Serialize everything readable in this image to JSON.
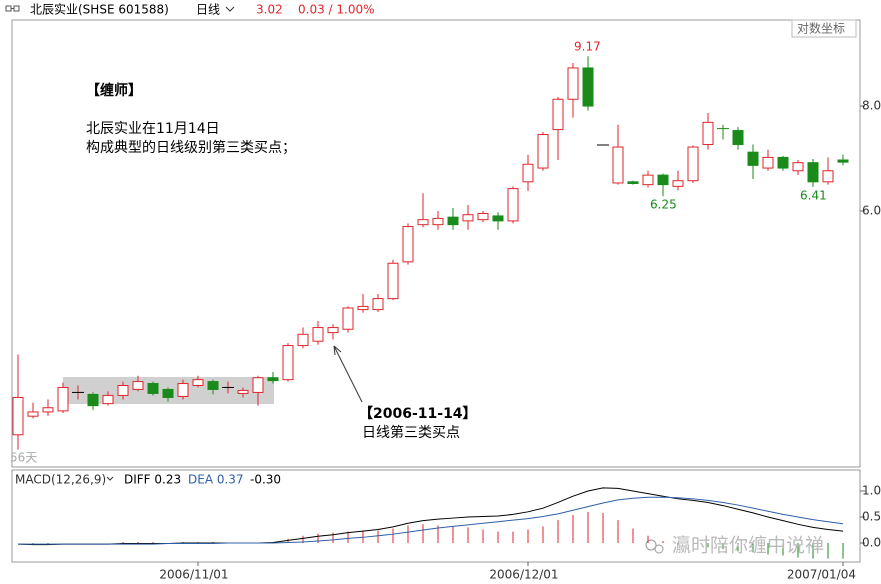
{
  "header": {
    "title": "北辰实业(SHSE 601588)",
    "period": "日线",
    "price": "3.02",
    "change": "0.03 / 1.00%"
  },
  "chart_data": [
    {
      "type": "candlestick",
      "log_scale": true,
      "scale_label": "对数坐标",
      "days_label": "56天",
      "up_color": "#e0262b",
      "down_color": "#1a8a1a",
      "categories": [
        null,
        null,
        null,
        null,
        null,
        null,
        null,
        null,
        null,
        null,
        null,
        null,
        "2006/11/01",
        null,
        null,
        null,
        null,
        null,
        null,
        null,
        null,
        null,
        null,
        null,
        null,
        null,
        null,
        null,
        null,
        null,
        null,
        null,
        null,
        null,
        "2006/12/01",
        null,
        null,
        null,
        null,
        null,
        null,
        null,
        null,
        null,
        null,
        null,
        null,
        null,
        null,
        null,
        null,
        null,
        null,
        null,
        null,
        "2007/01/04"
      ],
      "open": [
        3.25,
        3.42,
        3.46,
        3.47,
        3.65,
        3.63,
        3.54,
        3.62,
        3.68,
        3.74,
        3.68,
        3.61,
        3.72,
        3.76,
        3.7,
        3.64,
        3.65,
        3.8,
        3.78,
        4.15,
        4.2,
        4.3,
        4.34,
        4.58,
        4.58,
        4.72,
        5.22,
        5.78,
        5.78,
        5.9,
        5.84,
        5.86,
        5.92,
        5.84,
        6.5,
        6.75,
        7.5,
        8.15,
        8.88,
        7.19,
        6.48,
        6.5,
        6.45,
        6.62,
        6.42,
        6.52,
        7.2,
        7.52,
        7.48,
        7.05,
        6.75,
        6.95,
        6.7,
        6.85,
        6.5,
        6.9
      ],
      "high": [
        4.05,
        3.55,
        3.58,
        3.75,
        3.72,
        3.65,
        3.66,
        3.76,
        3.82,
        3.76,
        3.7,
        3.78,
        3.82,
        3.78,
        3.76,
        3.7,
        3.82,
        3.86,
        4.18,
        4.36,
        4.44,
        4.4,
        4.62,
        4.78,
        4.78,
        5.25,
        5.8,
        6.3,
        6.0,
        6.05,
        6.1,
        6.0,
        5.98,
        6.42,
        7.0,
        7.45,
        8.2,
        9.0,
        9.17,
        7.19,
        7.6,
        6.52,
        6.7,
        6.65,
        6.7,
        7.18,
        7.85,
        7.6,
        7.55,
        7.2,
        7.1,
        6.98,
        6.9,
        6.92,
        6.95,
        7.0
      ],
      "low": [
        3.12,
        3.4,
        3.42,
        3.45,
        3.58,
        3.48,
        3.52,
        3.58,
        3.66,
        3.62,
        3.56,
        3.58,
        3.7,
        3.63,
        3.64,
        3.6,
        3.52,
        3.74,
        3.76,
        4.12,
        4.16,
        4.22,
        4.3,
        4.54,
        4.55,
        4.7,
        5.18,
        5.74,
        5.7,
        5.7,
        5.7,
        5.82,
        5.7,
        5.8,
        6.34,
        6.7,
        6.9,
        7.75,
        7.9,
        7.19,
        6.45,
        6.45,
        6.4,
        6.25,
        6.35,
        6.48,
        7.1,
        7.3,
        7.1,
        6.55,
        6.7,
        6.7,
        6.62,
        6.41,
        6.45,
        6.8
      ],
      "close": [
        3.6,
        3.46,
        3.5,
        3.7,
        3.66,
        3.52,
        3.62,
        3.72,
        3.76,
        3.64,
        3.6,
        3.74,
        3.78,
        3.68,
        3.7,
        3.67,
        3.8,
        3.77,
        4.15,
        4.28,
        4.36,
        4.36,
        4.6,
        4.62,
        4.72,
        5.2,
        5.75,
        5.86,
        5.88,
        5.78,
        5.94,
        5.96,
        5.84,
        6.38,
        6.82,
        7.4,
        8.15,
        8.88,
        8.0,
        7.19,
        7.15,
        6.47,
        6.62,
        6.45,
        6.52,
        7.15,
        7.65,
        7.5,
        7.2,
        6.8,
        6.95,
        6.75,
        6.85,
        6.5,
        6.7,
        6.86
      ],
      "ylim": [
        3.0,
        10.0
      ],
      "yticks": [
        {
          "value": 6,
          "label": "6.0"
        },
        {
          "value": 8,
          "label": "8.0"
        }
      ],
      "price_labels": [
        "9.17",
        "6.25",
        "6.41"
      ],
      "annotations": [
        "【缠师】",
        "北辰实业在11月14日",
        "构成典型的日线级别第三类买点；",
        "【2006-11-14】",
        "日线第三类买点"
      ],
      "watermark": "瀛时陪你缠中说禅"
    },
    {
      "type": "macd",
      "title": "MACD(12,26,9)",
      "series": [
        {
          "name": "DIFF 0.23",
          "color": "#000000",
          "values": [
            -0.02,
            -0.03,
            -0.03,
            -0.02,
            -0.02,
            -0.02,
            -0.02,
            -0.01,
            -0.01,
            -0.01,
            -0.01,
            0,
            0,
            0,
            0,
            0,
            0,
            0.01,
            0.05,
            0.09,
            0.13,
            0.16,
            0.2,
            0.23,
            0.26,
            0.31,
            0.38,
            0.43,
            0.46,
            0.48,
            0.5,
            0.51,
            0.52,
            0.55,
            0.6,
            0.67,
            0.78,
            0.9,
            1.0,
            1.06,
            1.05,
            1.0,
            0.95,
            0.9,
            0.85,
            0.82,
            0.78,
            0.72,
            0.65,
            0.58,
            0.5,
            0.43,
            0.36,
            0.3,
            0.26,
            0.23
          ]
        },
        {
          "name": "DEA 0.37",
          "color": "#2d5fa8",
          "values": [
            -0.02,
            -0.02,
            -0.02,
            -0.02,
            -0.02,
            -0.02,
            -0.02,
            -0.02,
            -0.02,
            -0.02,
            -0.01,
            -0.01,
            -0.01,
            -0.01,
            0,
            0,
            0,
            0,
            0.01,
            0.02,
            0.04,
            0.06,
            0.09,
            0.11,
            0.14,
            0.17,
            0.21,
            0.25,
            0.29,
            0.32,
            0.35,
            0.38,
            0.41,
            0.44,
            0.47,
            0.51,
            0.56,
            0.63,
            0.7,
            0.77,
            0.83,
            0.86,
            0.88,
            0.88,
            0.87,
            0.85,
            0.82,
            0.78,
            0.73,
            0.67,
            0.61,
            0.55,
            0.5,
            0.45,
            0.41,
            0.37
          ]
        },
        {
          "name": "-0.30",
          "color": "#e0262b",
          "values": [
            0,
            -0.02,
            -0.02,
            0,
            0,
            0,
            0,
            0.02,
            0.02,
            0.02,
            0,
            0.02,
            0.02,
            0.02,
            0,
            0,
            0,
            0.02,
            0.08,
            0.14,
            0.18,
            0.2,
            0.22,
            0.24,
            0.24,
            0.28,
            0.34,
            0.36,
            0.34,
            0.32,
            0.3,
            0.26,
            0.22,
            0.22,
            0.26,
            0.32,
            0.44,
            0.54,
            0.6,
            0.58,
            0.44,
            0.28,
            0.14,
            0.04,
            -0.04,
            -0.06,
            -0.08,
            -0.12,
            -0.16,
            -0.18,
            -0.22,
            -0.24,
            -0.28,
            -0.3,
            -0.3,
            -0.3
          ]
        }
      ],
      "ylim": [
        -0.33,
        1.4
      ],
      "yticks": [
        {
          "value": 0,
          "label": "0.0"
        },
        0.5,
        {
          "value": 1,
          "label": "1.0"
        }
      ]
    }
  ]
}
